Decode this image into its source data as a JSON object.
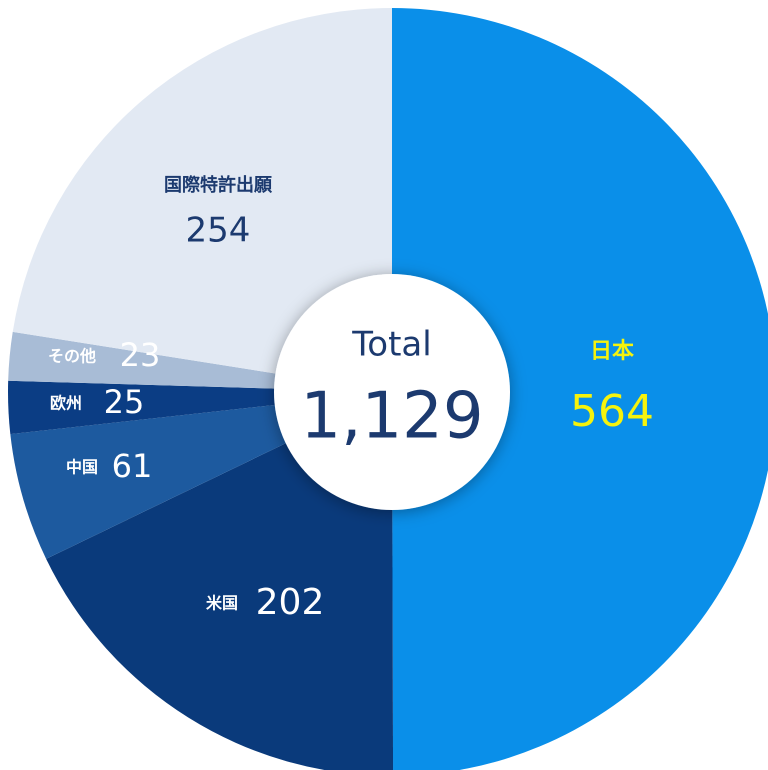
{
  "chart_data": {
    "type": "pie",
    "categories": [
      "日本",
      "米国",
      "中国",
      "欧州",
      "その他",
      "国際特許出願"
    ],
    "values": [
      564,
      202,
      61,
      25,
      23,
      254
    ],
    "colors": [
      "#0a8fe9",
      "#0a3a7b",
      "#1d5a9f",
      "#0b3d84",
      "#a8bcd6",
      "#e2e9f3"
    ],
    "label_colors": [
      "#f6f30c",
      "#ffffff",
      "#ffffff",
      "#ffffff",
      "#ffffff",
      "#1c3a6f"
    ],
    "center_title": "Total",
    "total": {
      "value": 1129,
      "label": "1,129"
    }
  }
}
